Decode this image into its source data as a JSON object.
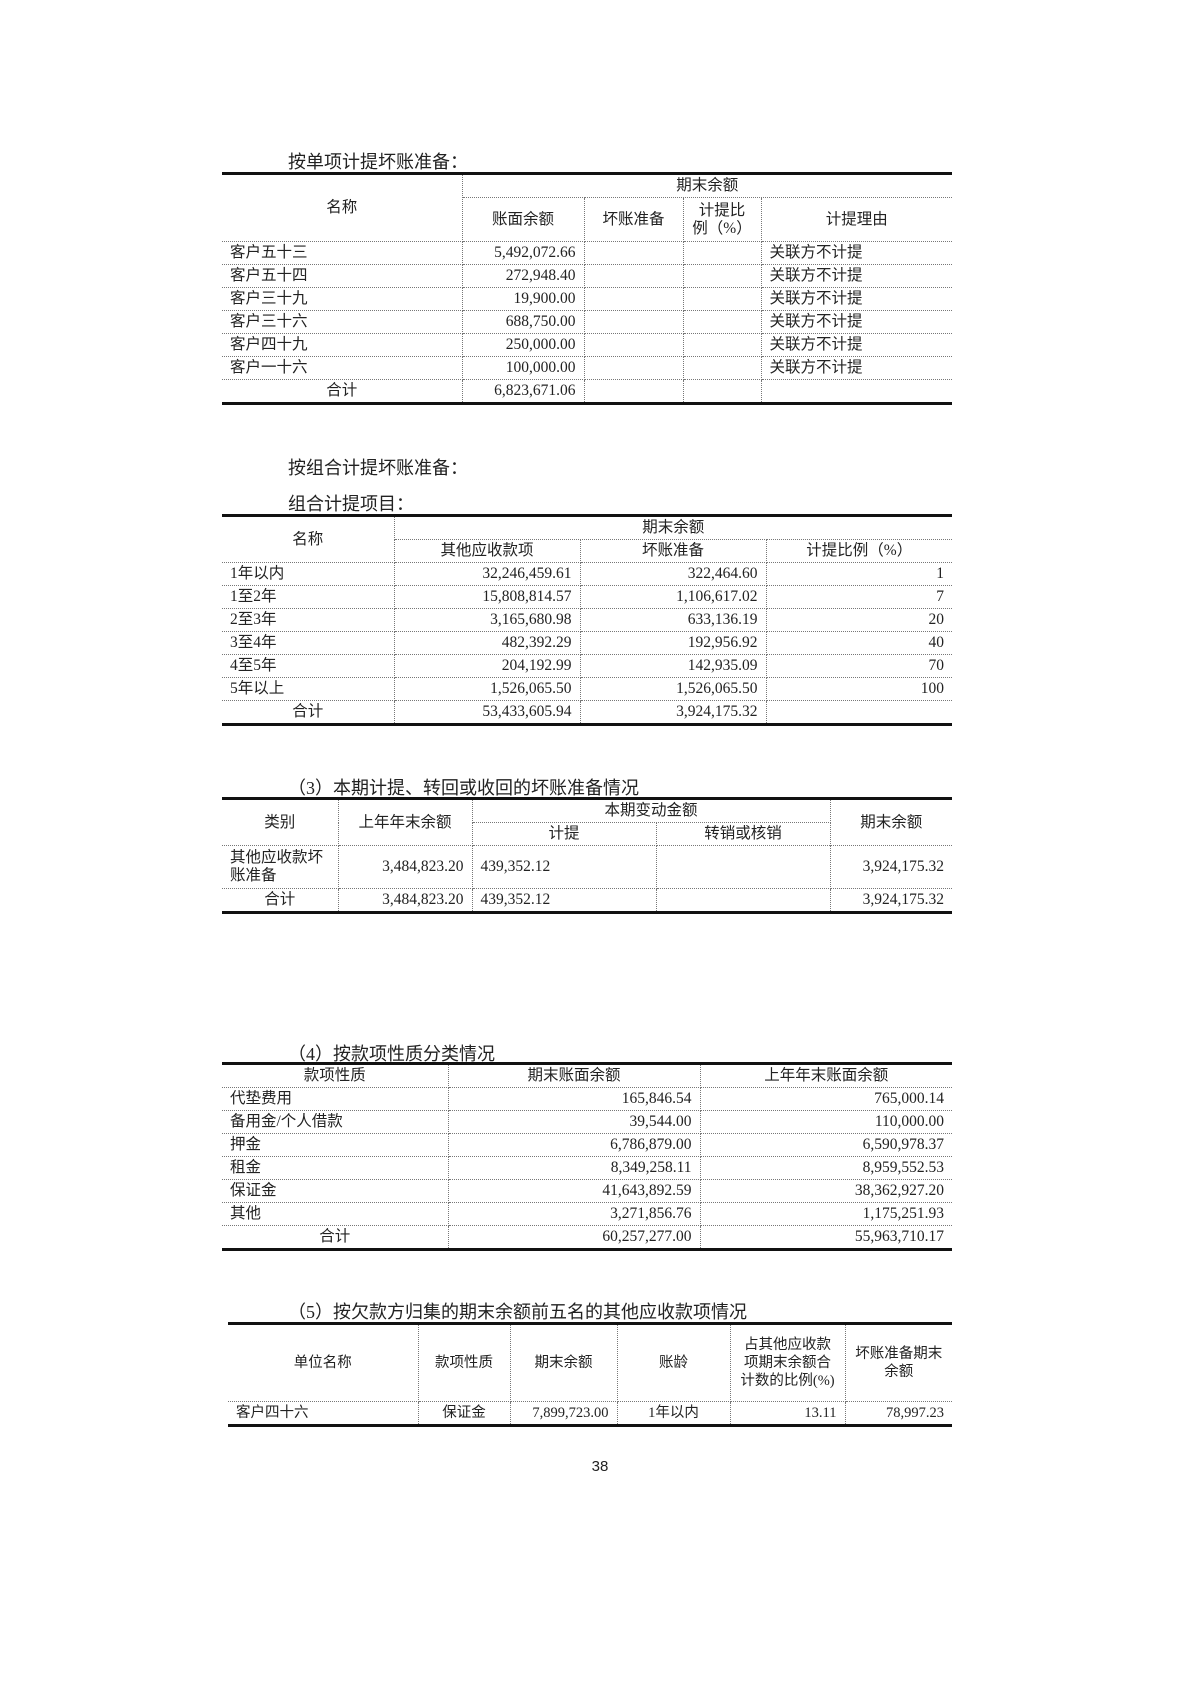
{
  "section1": {
    "caption": "按单项计提坏账准备：",
    "header_group": "期末余额",
    "headers": [
      "名称",
      "账面余额",
      "坏账准备",
      "计提比例（%）",
      "计提理由"
    ],
    "rows": [
      [
        "客户五十三",
        "5,492,072.66",
        "",
        "",
        "关联方不计提"
      ],
      [
        "客户五十四",
        "272,948.40",
        "",
        "",
        "关联方不计提"
      ],
      [
        "客户三十九",
        "19,900.00",
        "",
        "",
        "关联方不计提"
      ],
      [
        "客户三十六",
        "688,750.00",
        "",
        "",
        "关联方不计提"
      ],
      [
        "客户四十九",
        "250,000.00",
        "",
        "",
        "关联方不计提"
      ],
      [
        "客户一十六",
        "100,000.00",
        "",
        "",
        "关联方不计提"
      ]
    ],
    "total": [
      "合计",
      "6,823,671.06",
      "",
      "",
      ""
    ]
  },
  "section2": {
    "caption": "按组合计提坏账准备：",
    "subcaption": "组合计提项目：",
    "header_group": "期末余额",
    "headers": [
      "名称",
      "其他应收款项",
      "坏账准备",
      "计提比例（%）"
    ],
    "rows": [
      [
        "1年以内",
        "32,246,459.61",
        "322,464.60",
        "1"
      ],
      [
        "1至2年",
        "15,808,814.57",
        "1,106,617.02",
        "7"
      ],
      [
        "2至3年",
        "3,165,680.98",
        "633,136.19",
        "20"
      ],
      [
        "3至4年",
        "482,392.29",
        "192,956.92",
        "40"
      ],
      [
        "4至5年",
        "204,192.99",
        "142,935.09",
        "70"
      ],
      [
        "5年以上",
        "1,526,065.50",
        "1,526,065.50",
        "100"
      ]
    ],
    "total": [
      "合计",
      "53,433,605.94",
      "3,924,175.32",
      ""
    ]
  },
  "section3": {
    "caption": "（3）本期计提、转回或收回的坏账准备情况",
    "headers": [
      "类别",
      "上年年末余额",
      "本期变动金额",
      "计提",
      "转销或核销",
      "期末余额"
    ],
    "rows": [
      [
        "其他应收款坏账准备",
        "3,484,823.20",
        "439,352.12",
        "",
        "3,924,175.32"
      ]
    ],
    "total": [
      "合计",
      "3,484,823.20",
      "439,352.12",
      "",
      "3,924,175.32"
    ]
  },
  "section4": {
    "caption": "（4）按款项性质分类情况",
    "headers": [
      "款项性质",
      "期末账面余额",
      "上年年末账面余额"
    ],
    "rows": [
      [
        "代垫费用",
        "165,846.54",
        "765,000.14"
      ],
      [
        "备用金/个人借款",
        "39,544.00",
        "110,000.00"
      ],
      [
        "押金",
        "6,786,879.00",
        "6,590,978.37"
      ],
      [
        "租金",
        "8,349,258.11",
        "8,959,552.53"
      ],
      [
        "保证金",
        "41,643,892.59",
        "38,362,927.20"
      ],
      [
        "其他",
        "3,271,856.76",
        "1,175,251.93"
      ]
    ],
    "total": [
      "合计",
      "60,257,277.00",
      "55,963,710.17"
    ]
  },
  "section5": {
    "caption": "（5）按欠款方归集的期末余额前五名的其他应收款项情况",
    "headers": [
      "单位名称",
      "款项性质",
      "期末余额",
      "账龄",
      "占其他应收款项期末余额合计数的比例(%)",
      "坏账准备期末余额"
    ],
    "rows": [
      [
        "客户四十六",
        "保证金",
        "7,899,723.00",
        "1年以内",
        "13.11",
        "78,997.23"
      ]
    ]
  },
  "page_number": "38"
}
